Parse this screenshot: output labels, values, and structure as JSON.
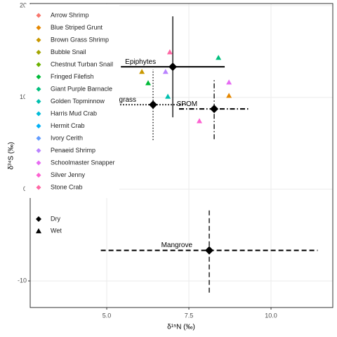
{
  "chart_data": {
    "type": "scatter",
    "x_label": "δ¹⁵N (‰)",
    "y_label": "δ³⁴S (‰)",
    "xlim": [
      2.67,
      11.88
    ],
    "ylim": [
      -12.9,
      20.23
    ],
    "xticks": [
      {
        "value": 5,
        "label": "5.0"
      },
      {
        "value": 7.5,
        "label": "7.5"
      },
      {
        "value": 10,
        "label": "10.0"
      }
    ],
    "yticks": [
      -10,
      0,
      10,
      20
    ],
    "grid": true,
    "legend_position": "top-left",
    "series": [
      {
        "name": "Arrow Shrimp",
        "color": "#F8766D",
        "x": [],
        "y": []
      },
      {
        "name": "Blue Striped Grunt",
        "color": "#E58700",
        "x": [
          8.72
        ],
        "y": [
          10.19
        ]
      },
      {
        "name": "Brown Grass Shrimp",
        "color": "#C99800",
        "x": [
          6.07
        ],
        "y": [
          12.8
        ]
      },
      {
        "name": "Bubble Snail",
        "color": "#A3A500",
        "x": [],
        "y": []
      },
      {
        "name": "Chestnut Turban Snail",
        "color": "#6BB100",
        "x": [],
        "y": []
      },
      {
        "name": "Fringed Filefish",
        "color": "#00BA38",
        "x": [
          6.26
        ],
        "y": [
          11.57
        ]
      },
      {
        "name": "Giant Purple Barnacle",
        "color": "#00BF7D",
        "x": [
          8.4
        ],
        "y": [
          14.33
        ]
      },
      {
        "name": "Golden Topminnow",
        "color": "#00C0AF",
        "x": [
          6.86
        ],
        "y": [
          10.1
        ]
      },
      {
        "name": "Harris Mud Crab",
        "color": "#00BCD8",
        "x": [],
        "y": []
      },
      {
        "name": "Hermit Crab",
        "color": "#00B0F6",
        "x": [],
        "y": []
      },
      {
        "name": "Ivory Cerith",
        "color": "#619CFF",
        "x": [],
        "y": []
      },
      {
        "name": "Penaeid Shrimp",
        "color": "#B983FF",
        "x": [
          6.79
        ],
        "y": [
          12.8
        ]
      },
      {
        "name": "Schoolmaster Snapper",
        "color": "#E76BF3",
        "x": [
          8.72
        ],
        "y": [
          11.65
        ]
      },
      {
        "name": "Silver Jenny",
        "color": "#FD61D1",
        "x": [
          7.82
        ],
        "y": [
          7.43
        ]
      },
      {
        "name": "Stone Crab",
        "color": "#FF67A4",
        "x": [
          6.92
        ],
        "y": [
          14.94
        ]
      }
    ],
    "shape_legend": [
      "Dry",
      "Wet"
    ],
    "sources": [
      {
        "name": "Epiphytes",
        "x": 7.01,
        "y": 13.33,
        "xerr": 1.58,
        "yerr": 5.5,
        "linestyle": "solid"
      },
      {
        "name": "Seagrass",
        "x": 6.41,
        "y": 9.2,
        "xerr": 1.0,
        "yerr": 3.84,
        "linestyle": "dotted"
      },
      {
        "name": "SPOM",
        "x": 8.27,
        "y": 8.74,
        "xerr": 1.07,
        "yerr": 3.3,
        "linestyle": "dashdot"
      },
      {
        "name": "Mangrove",
        "x": 8.12,
        "y": -6.67,
        "xerr": 3.3,
        "yerr": 4.6,
        "linestyle": "dashed"
      }
    ]
  }
}
